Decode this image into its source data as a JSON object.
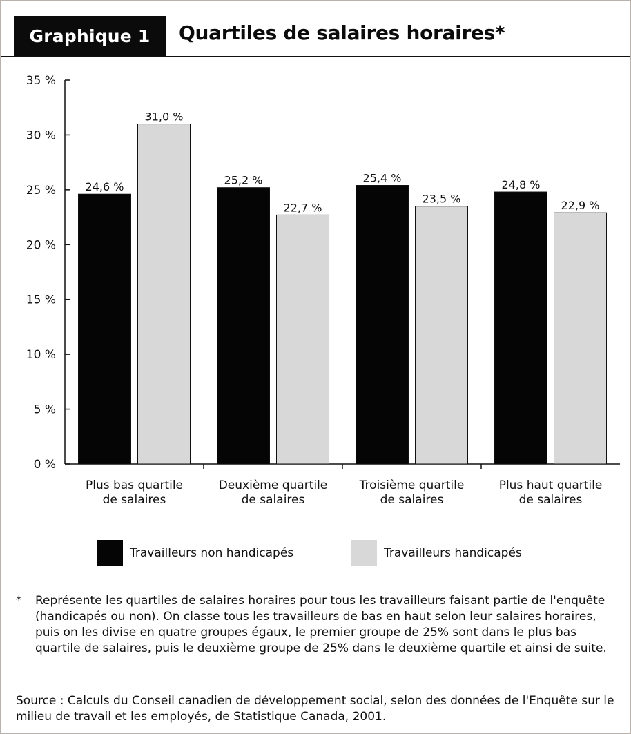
{
  "header": {
    "label": "Graphique 1",
    "title": "Quartiles de salaires horaires*"
  },
  "chart_data": {
    "type": "bar",
    "categories": [
      [
        "Plus bas quartile",
        "de salaires"
      ],
      [
        "Deuxième quartile",
        "de salaires"
      ],
      [
        "Troisième quartile",
        "de salaires"
      ],
      [
        "Plus haut quartile",
        "de salaires"
      ]
    ],
    "series": [
      {
        "name": "Travailleurs non handicapés",
        "color": "#050505",
        "values": [
          24.6,
          25.2,
          25.4,
          24.8
        ],
        "labels": [
          "24,6 %",
          "25,2 %",
          "25,4 %",
          "24,8 %"
        ]
      },
      {
        "name": "Travailleurs handicapés",
        "color": "#d8d8d8",
        "values": [
          31.0,
          22.7,
          23.5,
          22.9
        ],
        "labels": [
          "31,0 %",
          "22,7 %",
          "23,5 %",
          "22,9 %"
        ]
      }
    ],
    "ylim": [
      0,
      35
    ],
    "yticks": [
      0,
      5,
      10,
      15,
      20,
      25,
      30,
      35
    ],
    "ytick_labels": [
      "0 %",
      "5 %",
      "10 %",
      "15 %",
      "20 %",
      "25 %",
      "30 %",
      "35 %"
    ],
    "grid": false,
    "legend_position": "bottom"
  },
  "legend": [
    {
      "label": "Travailleurs non handicapés",
      "color": "#050505"
    },
    {
      "label": "Travailleurs handicapés",
      "color": "#d8d8d8"
    }
  ],
  "footnote": {
    "marker": "*",
    "text": "Représente les quartiles de salaires horaires pour tous les travailleurs faisant partie de l'enquête (handicapés ou non). On classe tous les travailleurs de bas en haut selon leur salaires horaires, puis on les divise en quatre groupes égaux, le premier groupe de 25% sont dans le plus bas quartile de salaires, puis le deuxième groupe de 25% dans le deuxième quartile et ainsi de suite."
  },
  "source": "Source : Calculs du Conseil canadien de développement social, selon des données de l'Enquête sur le milieu de travail et les employés, de Statistique Canada, 2001."
}
